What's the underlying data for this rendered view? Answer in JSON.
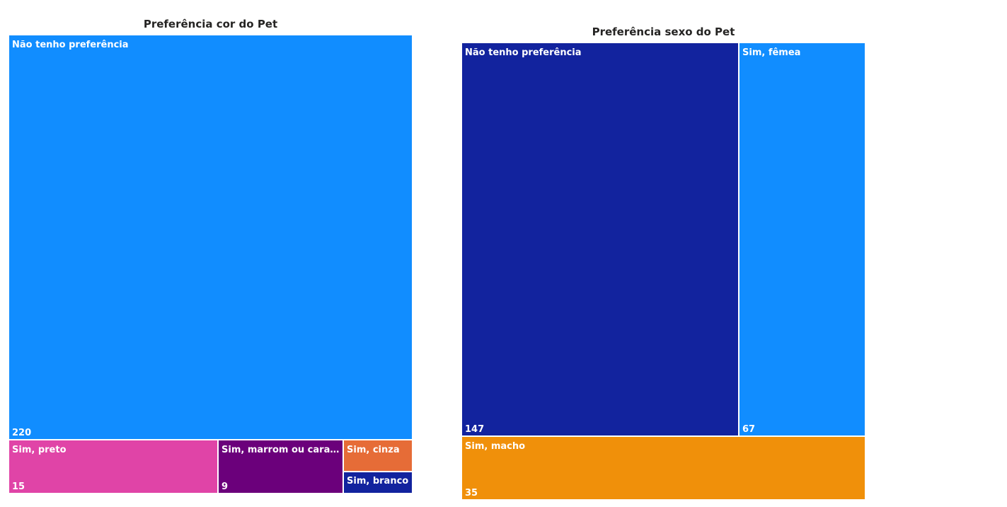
{
  "chart_data": [
    {
      "type": "treemap",
      "title": "Preferência cor do Pet",
      "items": [
        {
          "label": "Não tenho preferência",
          "value": 220,
          "value_label": "220",
          "color": "#118DFF"
        },
        {
          "label": "Sim, preto",
          "value": 15,
          "value_label": "15",
          "color": "#E044A7"
        },
        {
          "label": "Sim, marrom ou caramelo",
          "value": 9,
          "value_label": "9",
          "color": "#6B007B"
        },
        {
          "label": "Sim, cinza",
          "value": 3,
          "value_label": "",
          "color": "#E66C37"
        },
        {
          "label": "Sim, branco",
          "value": 3,
          "value_label": "",
          "color": "#12239E"
        }
      ]
    },
    {
      "type": "treemap",
      "title": "Preferência sexo do Pet",
      "items": [
        {
          "label": "Não tenho preferência",
          "value": 147,
          "value_label": "147",
          "color": "#12239E"
        },
        {
          "label": "Sim, fêmea",
          "value": 67,
          "value_label": "67",
          "color": "#118DFF"
        },
        {
          "label": "Sim, macho",
          "value": 35,
          "value_label": "35",
          "color": "#F0900A"
        }
      ]
    }
  ]
}
